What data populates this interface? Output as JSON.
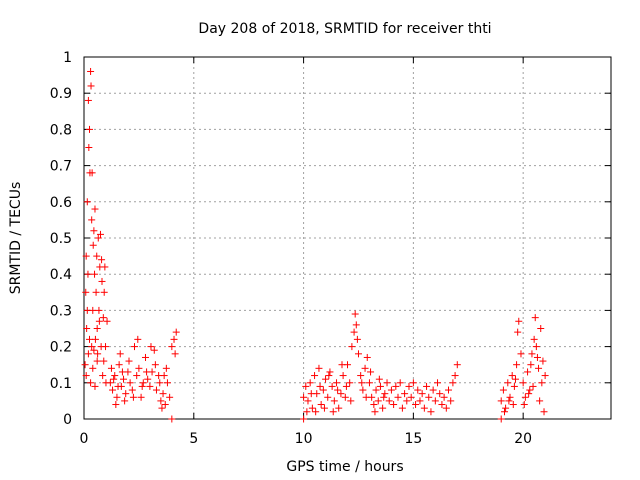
{
  "chart_data": {
    "type": "scatter",
    "title": "Day 208 of 2018, SRMTID for receiver thti",
    "xlabel": "GPS time / hours",
    "ylabel": "SRMTID / TECUs",
    "xlim": [
      0,
      24
    ],
    "ylim": [
      0,
      1
    ],
    "xticks": [
      0,
      5,
      10,
      15,
      20
    ],
    "xtick_labels": [
      "0",
      "5",
      "10",
      "15",
      "20"
    ],
    "yticks": [
      0,
      0.1,
      0.2,
      0.3,
      0.4,
      0.5,
      0.6,
      0.7,
      0.8,
      0.9,
      1
    ],
    "ytick_labels": [
      "0",
      "0.1",
      "0.2",
      "0.3",
      "0.4",
      "0.5",
      "0.6",
      "0.7",
      "0.8",
      "0.9",
      "1"
    ],
    "grid": true,
    "marker": "+",
    "color": "#ff0000",
    "series": [
      {
        "name": "SRMTID",
        "points": [
          [
            0.05,
            0.15
          ],
          [
            0.08,
            0.35
          ],
          [
            0.1,
            0.45
          ],
          [
            0.12,
            0.25
          ],
          [
            0.15,
            0.6
          ],
          [
            0.18,
            0.4
          ],
          [
            0.2,
            0.88
          ],
          [
            0.22,
            0.75
          ],
          [
            0.25,
            0.8
          ],
          [
            0.27,
            0.68
          ],
          [
            0.3,
            0.96
          ],
          [
            0.32,
            0.92
          ],
          [
            0.35,
            0.55
          ],
          [
            0.37,
            0.68
          ],
          [
            0.4,
            0.3
          ],
          [
            0.42,
            0.48
          ],
          [
            0.45,
            0.52
          ],
          [
            0.48,
            0.4
          ],
          [
            0.5,
            0.58
          ],
          [
            0.52,
            0.22
          ],
          [
            0.55,
            0.35
          ],
          [
            0.58,
            0.45
          ],
          [
            0.6,
            0.25
          ],
          [
            0.62,
            0.18
          ],
          [
            0.65,
            0.5
          ],
          [
            0.68,
            0.3
          ],
          [
            0.7,
            0.27
          ],
          [
            0.72,
            0.42
          ],
          [
            0.75,
            0.51
          ],
          [
            0.78,
            0.2
          ],
          [
            0.8,
            0.44
          ],
          [
            0.82,
            0.38
          ],
          [
            0.85,
            0.12
          ],
          [
            0.88,
            0.28
          ],
          [
            0.9,
            0.16
          ],
          [
            0.92,
            0.35
          ],
          [
            0.95,
            0.42
          ],
          [
            0.98,
            0.2
          ],
          [
            1.0,
            0.1
          ],
          [
            1.05,
            0.27
          ],
          [
            0.1,
            0.12
          ],
          [
            0.2,
            0.18
          ],
          [
            0.3,
            0.1
          ],
          [
            0.4,
            0.14
          ],
          [
            0.5,
            0.09
          ],
          [
            0.6,
            0.16
          ],
          [
            0.15,
            0.3
          ],
          [
            0.25,
            0.22
          ],
          [
            0.35,
            0.2
          ],
          [
            0.45,
            0.19
          ],
          [
            1.2,
            0.1
          ],
          [
            1.3,
            0.08
          ],
          [
            1.4,
            0.12
          ],
          [
            1.5,
            0.06
          ],
          [
            1.6,
            0.15
          ],
          [
            1.7,
            0.09
          ],
          [
            1.8,
            0.11
          ],
          [
            1.9,
            0.07
          ],
          [
            2.0,
            0.13
          ],
          [
            2.1,
            0.1
          ],
          [
            2.2,
            0.08
          ],
          [
            2.3,
            0.2
          ],
          [
            2.4,
            0.12
          ],
          [
            2.5,
            0.14
          ],
          [
            2.6,
            0.06
          ],
          [
            2.7,
            0.1
          ],
          [
            2.8,
            0.17
          ],
          [
            2.9,
            0.11
          ],
          [
            3.0,
            0.09
          ],
          [
            3.1,
            0.13
          ],
          [
            3.2,
            0.19
          ],
          [
            3.3,
            0.08
          ],
          [
            3.4,
            0.12
          ],
          [
            3.5,
            0.05
          ],
          [
            3.6,
            0.07
          ],
          [
            3.7,
            0.04
          ],
          [
            3.8,
            0.1
          ],
          [
            3.9,
            0.06
          ],
          [
            4.0,
            0.2
          ],
          [
            4.1,
            0.22
          ],
          [
            4.15,
            0.18
          ],
          [
            4.2,
            0.24
          ],
          [
            1.25,
            0.14
          ],
          [
            1.45,
            0.04
          ],
          [
            1.65,
            0.18
          ],
          [
            1.85,
            0.05
          ],
          [
            2.05,
            0.16
          ],
          [
            2.25,
            0.06
          ],
          [
            2.45,
            0.22
          ],
          [
            2.65,
            0.09
          ],
          [
            2.85,
            0.13
          ],
          [
            3.05,
            0.2
          ],
          [
            3.25,
            0.15
          ],
          [
            3.45,
            0.1
          ],
          [
            3.55,
            0.03
          ],
          [
            3.65,
            0.12
          ],
          [
            3.75,
            0.14
          ],
          [
            1.35,
            0.11
          ],
          [
            1.55,
            0.09
          ],
          [
            1.75,
            0.13
          ],
          [
            4.0,
            0.0
          ],
          [
            10.0,
            0.06
          ],
          [
            10.1,
            0.09
          ],
          [
            10.2,
            0.05
          ],
          [
            10.3,
            0.1
          ],
          [
            10.4,
            0.03
          ],
          [
            10.5,
            0.12
          ],
          [
            10.6,
            0.07
          ],
          [
            10.7,
            0.14
          ],
          [
            10.8,
            0.04
          ],
          [
            10.9,
            0.08
          ],
          [
            11.0,
            0.11
          ],
          [
            11.1,
            0.06
          ],
          [
            11.2,
            0.13
          ],
          [
            11.3,
            0.09
          ],
          [
            11.4,
            0.05
          ],
          [
            11.5,
            0.1
          ],
          [
            11.6,
            0.03
          ],
          [
            11.7,
            0.07
          ],
          [
            11.8,
            0.12
          ],
          [
            11.9,
            0.06
          ],
          [
            12.0,
            0.15
          ],
          [
            12.1,
            0.1
          ],
          [
            12.2,
            0.2
          ],
          [
            12.3,
            0.24
          ],
          [
            12.35,
            0.29
          ],
          [
            12.4,
            0.26
          ],
          [
            12.5,
            0.18
          ],
          [
            12.6,
            0.12
          ],
          [
            12.7,
            0.08
          ],
          [
            12.8,
            0.14
          ],
          [
            12.9,
            0.17
          ],
          [
            13.0,
            0.1
          ],
          [
            13.1,
            0.06
          ],
          [
            13.2,
            0.04
          ],
          [
            13.3,
            0.08
          ],
          [
            13.4,
            0.05
          ],
          [
            13.5,
            0.09
          ],
          [
            13.6,
            0.03
          ],
          [
            13.7,
            0.07
          ],
          [
            13.8,
            0.1
          ],
          [
            13.9,
            0.05
          ],
          [
            14.0,
            0.08
          ],
          [
            14.1,
            0.04
          ],
          [
            14.2,
            0.09
          ],
          [
            14.3,
            0.06
          ],
          [
            14.4,
            0.1
          ],
          [
            14.5,
            0.03
          ],
          [
            14.6,
            0.07
          ],
          [
            14.7,
            0.05
          ],
          [
            14.8,
            0.09
          ],
          [
            14.9,
            0.06
          ],
          [
            15.0,
            0.1
          ],
          [
            15.1,
            0.04
          ],
          [
            15.2,
            0.08
          ],
          [
            15.3,
            0.05
          ],
          [
            15.4,
            0.07
          ],
          [
            15.5,
            0.03
          ],
          [
            15.6,
            0.09
          ],
          [
            15.7,
            0.06
          ],
          [
            15.8,
            0.02
          ],
          [
            15.9,
            0.08
          ],
          [
            16.0,
            0.05
          ],
          [
            16.1,
            0.1
          ],
          [
            16.2,
            0.07
          ],
          [
            16.3,
            0.04
          ],
          [
            16.4,
            0.06
          ],
          [
            16.5,
            0.03
          ],
          [
            16.6,
            0.08
          ],
          [
            16.7,
            0.05
          ],
          [
            16.8,
            0.1
          ],
          [
            16.9,
            0.12
          ],
          [
            17.0,
            0.15
          ],
          [
            10.15,
            0.02
          ],
          [
            10.35,
            0.07
          ],
          [
            10.55,
            0.02
          ],
          [
            10.75,
            0.09
          ],
          [
            10.95,
            0.03
          ],
          [
            11.15,
            0.12
          ],
          [
            11.35,
            0.02
          ],
          [
            11.55,
            0.08
          ],
          [
            11.75,
            0.15
          ],
          [
            11.95,
            0.09
          ],
          [
            12.15,
            0.05
          ],
          [
            12.45,
            0.22
          ],
          [
            12.65,
            0.1
          ],
          [
            12.85,
            0.06
          ],
          [
            13.05,
            0.13
          ],
          [
            13.25,
            0.02
          ],
          [
            13.45,
            0.11
          ],
          [
            13.65,
            0.06
          ],
          [
            10.0,
            0.0
          ],
          [
            19.0,
            0.05
          ],
          [
            19.1,
            0.08
          ],
          [
            19.2,
            0.03
          ],
          [
            19.3,
            0.1
          ],
          [
            19.4,
            0.06
          ],
          [
            19.5,
            0.12
          ],
          [
            19.6,
            0.09
          ],
          [
            19.7,
            0.15
          ],
          [
            19.75,
            0.24
          ],
          [
            19.8,
            0.27
          ],
          [
            19.9,
            0.18
          ],
          [
            20.0,
            0.1
          ],
          [
            20.1,
            0.06
          ],
          [
            20.2,
            0.13
          ],
          [
            20.3,
            0.08
          ],
          [
            20.4,
            0.18
          ],
          [
            20.5,
            0.22
          ],
          [
            20.55,
            0.28
          ],
          [
            20.6,
            0.2
          ],
          [
            20.7,
            0.14
          ],
          [
            20.8,
            0.25
          ],
          [
            20.85,
            0.1
          ],
          [
            20.9,
            0.16
          ],
          [
            21.0,
            0.12
          ],
          [
            19.15,
            0.02
          ],
          [
            19.35,
            0.05
          ],
          [
            19.55,
            0.04
          ],
          [
            19.65,
            0.11
          ],
          [
            20.05,
            0.04
          ],
          [
            20.25,
            0.07
          ],
          [
            20.35,
            0.15
          ],
          [
            20.45,
            0.09
          ],
          [
            20.65,
            0.17
          ],
          [
            20.75,
            0.05
          ],
          [
            20.95,
            0.02
          ],
          [
            19.0,
            0.0
          ]
        ]
      }
    ]
  }
}
